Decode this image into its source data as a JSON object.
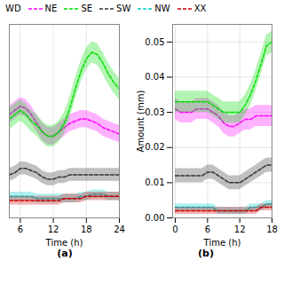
{
  "chart_data": [
    {
      "type": "line",
      "title": "(a)",
      "xlabel": "Time (h)",
      "legend": "upper left",
      "legend_title": "WD",
      "grid": true,
      "tick_labels": "x",
      "xlim": [
        4,
        24
      ],
      "xticks": [
        6,
        12,
        18,
        24
      ],
      "ylim": [
        0.0,
        0.09
      ],
      "x": [
        4,
        5,
        6,
        7,
        8,
        9,
        10,
        11,
        12,
        13,
        14,
        15,
        16,
        17,
        18,
        19,
        20,
        21,
        22,
        23,
        24
      ],
      "series": [
        {
          "name": "NE",
          "color": "#ff00ff",
          "line_style": "dashed",
          "values": [
            0.048,
            0.05,
            0.052,
            0.051,
            0.048,
            0.044,
            0.04,
            0.038,
            0.038,
            0.04,
            0.042,
            0.044,
            0.045,
            0.046,
            0.046,
            0.045,
            0.044,
            0.042,
            0.041,
            0.04,
            0.039
          ],
          "lo": [
            0.044,
            0.046,
            0.048,
            0.047,
            0.044,
            0.04,
            0.036,
            0.034,
            0.034,
            0.036,
            0.038,
            0.04,
            0.041,
            0.042,
            0.042,
            0.041,
            0.04,
            0.038,
            0.037,
            0.036,
            0.035
          ],
          "hi": [
            0.052,
            0.054,
            0.056,
            0.055,
            0.052,
            0.048,
            0.044,
            0.042,
            0.042,
            0.044,
            0.046,
            0.048,
            0.049,
            0.05,
            0.05,
            0.049,
            0.048,
            0.046,
            0.045,
            0.044,
            0.043
          ]
        },
        {
          "name": "SE",
          "color": "#00dd00",
          "line_style": "dashed",
          "values": [
            0.046,
            0.048,
            0.05,
            0.048,
            0.045,
            0.043,
            0.04,
            0.038,
            0.038,
            0.04,
            0.044,
            0.051,
            0.06,
            0.068,
            0.074,
            0.077,
            0.076,
            0.072,
            0.067,
            0.063,
            0.06
          ],
          "lo": [
            0.041,
            0.043,
            0.045,
            0.043,
            0.04,
            0.038,
            0.035,
            0.033,
            0.033,
            0.035,
            0.039,
            0.046,
            0.055,
            0.063,
            0.069,
            0.072,
            0.071,
            0.067,
            0.062,
            0.058,
            0.055
          ],
          "hi": [
            0.051,
            0.053,
            0.055,
            0.053,
            0.05,
            0.048,
            0.045,
            0.043,
            0.043,
            0.045,
            0.049,
            0.056,
            0.065,
            0.073,
            0.079,
            0.082,
            0.081,
            0.077,
            0.072,
            0.068,
            0.065
          ]
        },
        {
          "name": "SW",
          "color": "#333333",
          "line_style": "dashed",
          "values": [
            0.02,
            0.021,
            0.023,
            0.023,
            0.022,
            0.021,
            0.019,
            0.018,
            0.018,
            0.019,
            0.019,
            0.02,
            0.02,
            0.02,
            0.02,
            0.02,
            0.02,
            0.02,
            0.02,
            0.02,
            0.02
          ],
          "lo": [
            0.017,
            0.018,
            0.02,
            0.02,
            0.019,
            0.018,
            0.016,
            0.015,
            0.015,
            0.016,
            0.016,
            0.017,
            0.017,
            0.017,
            0.017,
            0.017,
            0.017,
            0.017,
            0.017,
            0.017,
            0.017
          ],
          "hi": [
            0.023,
            0.024,
            0.026,
            0.026,
            0.025,
            0.024,
            0.022,
            0.021,
            0.021,
            0.022,
            0.022,
            0.023,
            0.023,
            0.023,
            0.023,
            0.023,
            0.023,
            0.023,
            0.023,
            0.023,
            0.023
          ]
        },
        {
          "name": "NW",
          "color": "#00cccc",
          "line_style": "dashed",
          "values": [
            0.01,
            0.01,
            0.01,
            0.01,
            0.01,
            0.009,
            0.009,
            0.009,
            0.009,
            0.009,
            0.009,
            0.009,
            0.009,
            0.01,
            0.01,
            0.011,
            0.011,
            0.011,
            0.01,
            0.01,
            0.01
          ],
          "lo": [
            0.008,
            0.008,
            0.008,
            0.008,
            0.008,
            0.007,
            0.007,
            0.007,
            0.007,
            0.007,
            0.007,
            0.007,
            0.007,
            0.008,
            0.008,
            0.009,
            0.009,
            0.009,
            0.008,
            0.008,
            0.008
          ],
          "hi": [
            0.012,
            0.012,
            0.012,
            0.012,
            0.012,
            0.011,
            0.011,
            0.011,
            0.011,
            0.011,
            0.011,
            0.011,
            0.011,
            0.012,
            0.012,
            0.013,
            0.013,
            0.013,
            0.012,
            0.012,
            0.012
          ]
        },
        {
          "name": "XX",
          "color": "#cc0000",
          "line_style": "dashed",
          "values": [
            0.008,
            0.008,
            0.008,
            0.008,
            0.008,
            0.008,
            0.008,
            0.008,
            0.008,
            0.008,
            0.009,
            0.009,
            0.009,
            0.009,
            0.01,
            0.01,
            0.01,
            0.01,
            0.01,
            0.01,
            0.01
          ],
          "lo": [
            0.006,
            0.006,
            0.006,
            0.006,
            0.006,
            0.006,
            0.006,
            0.006,
            0.006,
            0.006,
            0.007,
            0.007,
            0.007,
            0.007,
            0.008,
            0.008,
            0.008,
            0.008,
            0.008,
            0.008,
            0.008
          ],
          "hi": [
            0.01,
            0.01,
            0.01,
            0.01,
            0.01,
            0.01,
            0.01,
            0.01,
            0.01,
            0.01,
            0.011,
            0.011,
            0.011,
            0.011,
            0.012,
            0.012,
            0.012,
            0.012,
            0.012,
            0.012,
            0.012
          ]
        }
      ]
    },
    {
      "type": "line",
      "title": "(b)",
      "xlabel": "Time (h)",
      "ylabel": "Amount (mm)",
      "grid": true,
      "xlim": [
        -0.5,
        18
      ],
      "xticks": [
        0,
        6,
        12,
        18
      ],
      "ylim": [
        0.0,
        0.055
      ],
      "yticks": [
        {
          "value": 0,
          "label": "0.00"
        },
        0.01,
        0.02,
        0.03,
        0.04,
        0.05
      ],
      "x": [
        0,
        1,
        2,
        3,
        4,
        5,
        6,
        7,
        8,
        9,
        10,
        11,
        12,
        13,
        14,
        15,
        16,
        17,
        18
      ],
      "series": [
        {
          "name": "NE",
          "color": "#ff00ff",
          "line_style": "dashed",
          "values": [
            0.031,
            0.03,
            0.03,
            0.03,
            0.031,
            0.031,
            0.031,
            0.03,
            0.029,
            0.027,
            0.026,
            0.026,
            0.027,
            0.028,
            0.028,
            0.029,
            0.029,
            0.029,
            0.029
          ],
          "lo": [
            0.028,
            0.027,
            0.027,
            0.027,
            0.028,
            0.028,
            0.028,
            0.027,
            0.026,
            0.024,
            0.023,
            0.023,
            0.024,
            0.025,
            0.025,
            0.026,
            0.026,
            0.026,
            0.026
          ],
          "hi": [
            0.034,
            0.033,
            0.033,
            0.033,
            0.034,
            0.034,
            0.034,
            0.033,
            0.032,
            0.03,
            0.029,
            0.029,
            0.03,
            0.031,
            0.031,
            0.032,
            0.032,
            0.032,
            0.032
          ]
        },
        {
          "name": "SE",
          "color": "#00dd00",
          "line_style": "dashed",
          "values": [
            0.033,
            0.033,
            0.033,
            0.033,
            0.033,
            0.033,
            0.033,
            0.032,
            0.031,
            0.03,
            0.03,
            0.03,
            0.03,
            0.032,
            0.035,
            0.039,
            0.044,
            0.049,
            0.05
          ],
          "lo": [
            0.03,
            0.03,
            0.03,
            0.03,
            0.03,
            0.03,
            0.03,
            0.029,
            0.028,
            0.027,
            0.027,
            0.027,
            0.027,
            0.029,
            0.032,
            0.036,
            0.041,
            0.046,
            0.047
          ],
          "hi": [
            0.036,
            0.036,
            0.036,
            0.036,
            0.036,
            0.036,
            0.036,
            0.035,
            0.034,
            0.033,
            0.033,
            0.033,
            0.033,
            0.035,
            0.038,
            0.042,
            0.047,
            0.052,
            0.053
          ]
        },
        {
          "name": "SW",
          "color": "#333333",
          "line_style": "dashed",
          "values": [
            0.012,
            0.012,
            0.012,
            0.012,
            0.012,
            0.012,
            0.013,
            0.013,
            0.012,
            0.011,
            0.01,
            0.01,
            0.01,
            0.011,
            0.012,
            0.013,
            0.014,
            0.015,
            0.015
          ],
          "lo": [
            0.01,
            0.01,
            0.01,
            0.01,
            0.01,
            0.01,
            0.011,
            0.011,
            0.01,
            0.009,
            0.008,
            0.008,
            0.008,
            0.009,
            0.01,
            0.011,
            0.012,
            0.013,
            0.013
          ],
          "hi": [
            0.014,
            0.014,
            0.014,
            0.014,
            0.014,
            0.014,
            0.015,
            0.015,
            0.014,
            0.013,
            0.012,
            0.012,
            0.012,
            0.013,
            0.014,
            0.015,
            0.016,
            0.017,
            0.017
          ]
        },
        {
          "name": "NW",
          "color": "#00cccc",
          "line_style": "dashed",
          "values": [
            0.003,
            0.003,
            0.003,
            0.003,
            0.003,
            0.003,
            0.003,
            0.003,
            0.002,
            0.002,
            0.002,
            0.002,
            0.002,
            0.002,
            0.003,
            0.003,
            0.003,
            0.004,
            0.004
          ],
          "lo": [
            0.002,
            0.002,
            0.002,
            0.002,
            0.002,
            0.002,
            0.002,
            0.002,
            0.001,
            0.001,
            0.001,
            0.001,
            0.001,
            0.001,
            0.002,
            0.002,
            0.002,
            0.003,
            0.003
          ],
          "hi": [
            0.004,
            0.004,
            0.004,
            0.004,
            0.004,
            0.004,
            0.004,
            0.004,
            0.003,
            0.003,
            0.003,
            0.003,
            0.003,
            0.003,
            0.004,
            0.004,
            0.004,
            0.005,
            0.005
          ]
        },
        {
          "name": "XX",
          "color": "#cc0000",
          "line_style": "dashed",
          "values": [
            0.002,
            0.002,
            0.002,
            0.002,
            0.002,
            0.002,
            0.002,
            0.002,
            0.002,
            0.002,
            0.002,
            0.002,
            0.002,
            0.002,
            0.002,
            0.002,
            0.003,
            0.003,
            0.003
          ],
          "lo": [
            0.001,
            0.001,
            0.001,
            0.001,
            0.001,
            0.001,
            0.001,
            0.001,
            0.001,
            0.001,
            0.001,
            0.001,
            0.001,
            0.001,
            0.001,
            0.001,
            0.002,
            0.002,
            0.002
          ],
          "hi": [
            0.003,
            0.003,
            0.003,
            0.003,
            0.003,
            0.003,
            0.003,
            0.003,
            0.003,
            0.003,
            0.003,
            0.003,
            0.003,
            0.003,
            0.003,
            0.003,
            0.004,
            0.004,
            0.004
          ]
        }
      ]
    }
  ]
}
